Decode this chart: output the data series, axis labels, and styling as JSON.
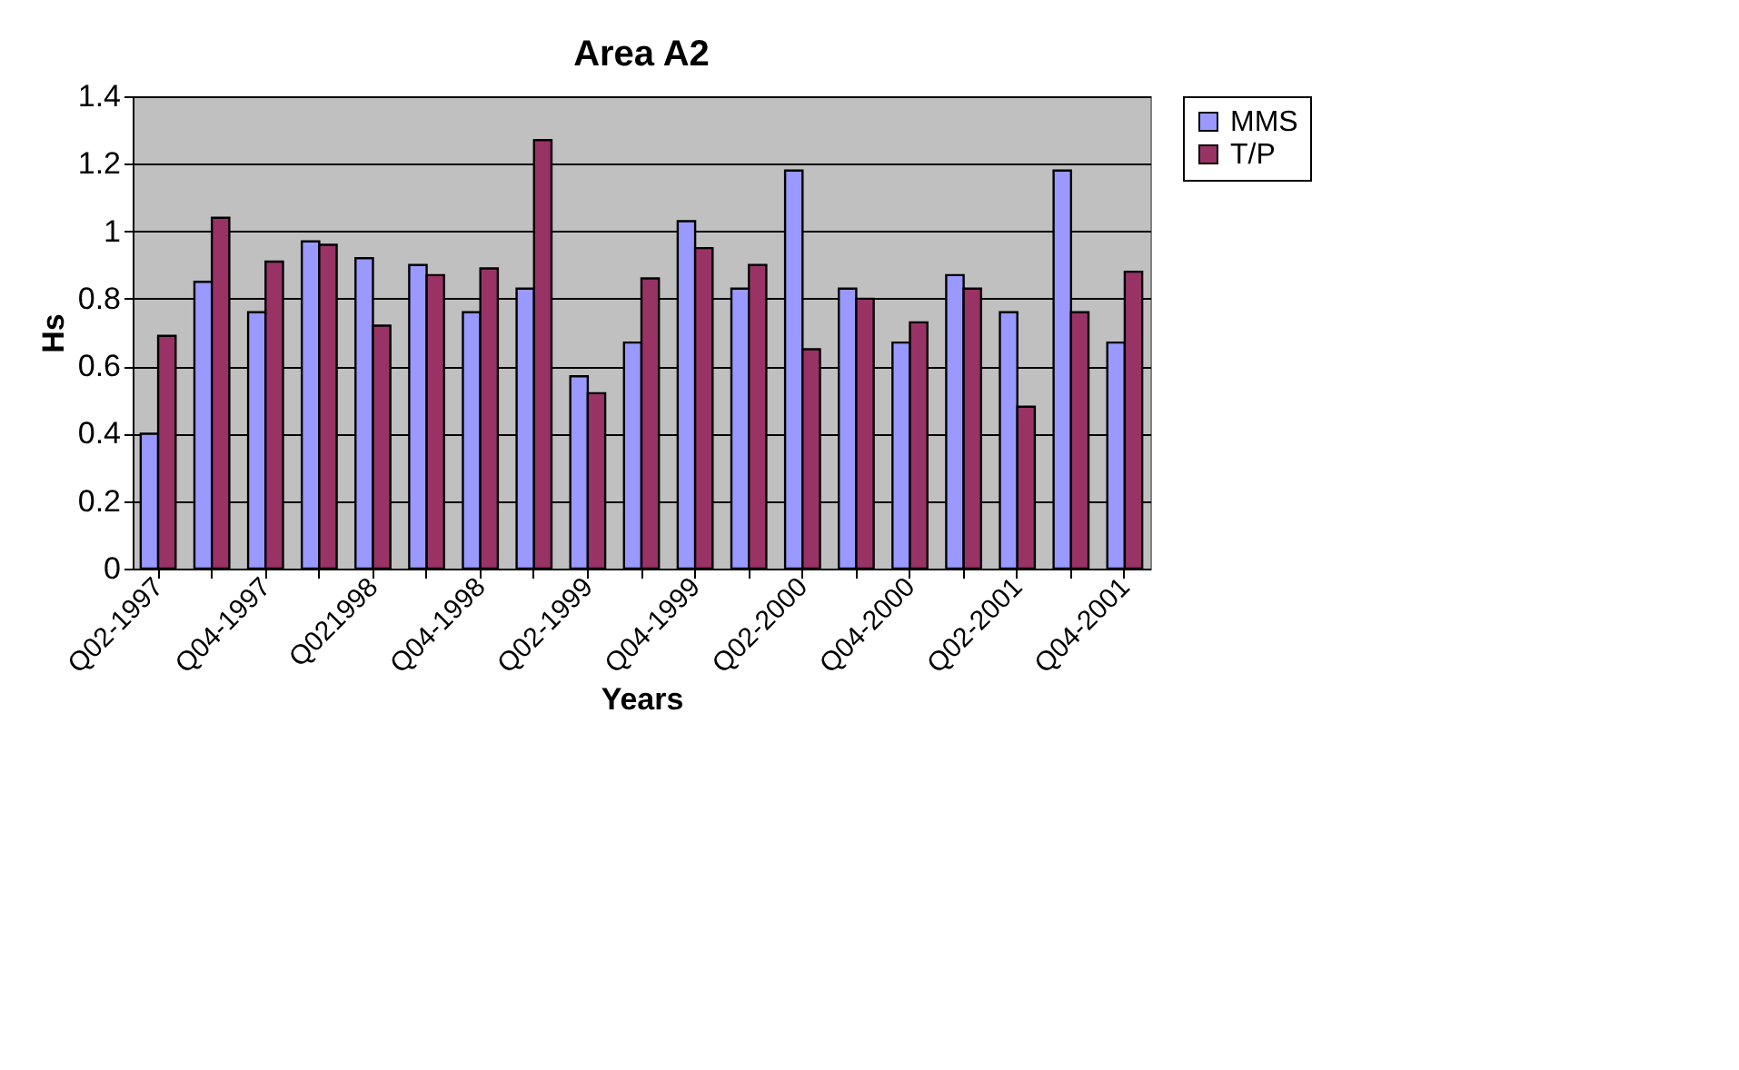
{
  "chart_data": {
    "type": "bar",
    "title": "Area A2",
    "xlabel": "Years",
    "ylabel": "Hs",
    "categories": [
      "Q02-1997",
      null,
      "Q04-1997",
      null,
      "Q021998",
      null,
      "Q04-1998",
      null,
      "Q02-1999",
      null,
      "Q04-1999",
      null,
      "Q02-2000",
      null,
      "Q04-2000",
      null,
      "Q02-2001",
      null,
      "Q04-2001"
    ],
    "series": [
      {
        "name": "MMS",
        "color": "#9999ff",
        "values": [
          0.4,
          0.85,
          0.76,
          0.97,
          0.92,
          0.9,
          0.76,
          0.83,
          0.57,
          0.67,
          1.03,
          0.83,
          1.18,
          0.83,
          0.67,
          0.87,
          0.76,
          1.18,
          0.67
        ]
      },
      {
        "name": "T/P",
        "color": "#993366",
        "values": [
          0.69,
          1.04,
          0.91,
          0.96,
          0.72,
          0.87,
          0.89,
          1.27,
          0.52,
          0.86,
          0.95,
          0.9,
          0.65,
          0.8,
          0.73,
          0.83,
          0.48,
          0.76,
          0.88
        ]
      }
    ],
    "ylim": [
      0,
      1.4
    ],
    "yticks": [
      0,
      0.2,
      0.4,
      0.6,
      0.8,
      1,
      1.2,
      1.4
    ],
    "grid": "y",
    "legend": "right"
  }
}
